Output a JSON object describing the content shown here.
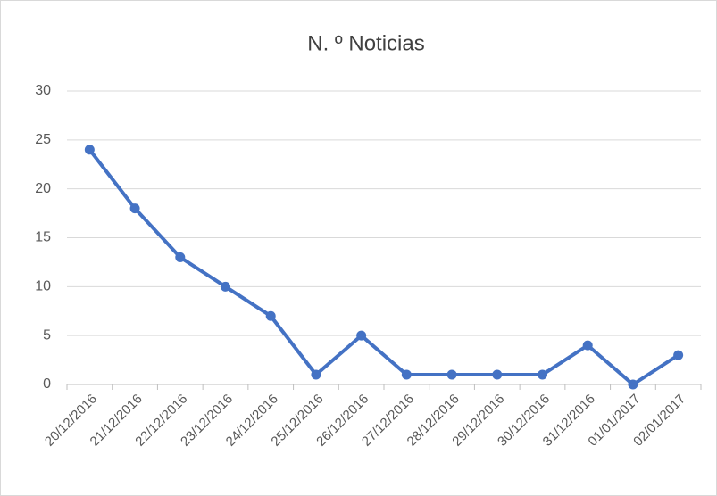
{
  "chart_data": {
    "type": "line",
    "title": "N. º Noticias",
    "categories": [
      "20/12/2016",
      "21/12/2016",
      "22/12/2016",
      "23/12/2016",
      "24/12/2016",
      "25/12/2016",
      "26/12/2016",
      "27/12/2016",
      "28/12/2016",
      "29/12/2016",
      "30/12/2016",
      "31/12/2016",
      "01/01/2017",
      "02/01/2017"
    ],
    "values": [
      24,
      18,
      13,
      10,
      7,
      1,
      5,
      1,
      1,
      1,
      1,
      4,
      0,
      3
    ],
    "color": "#4472c4",
    "ylim": [
      0,
      30
    ],
    "yticks": [
      0,
      5,
      10,
      15,
      20,
      25,
      30
    ],
    "grid": true
  }
}
